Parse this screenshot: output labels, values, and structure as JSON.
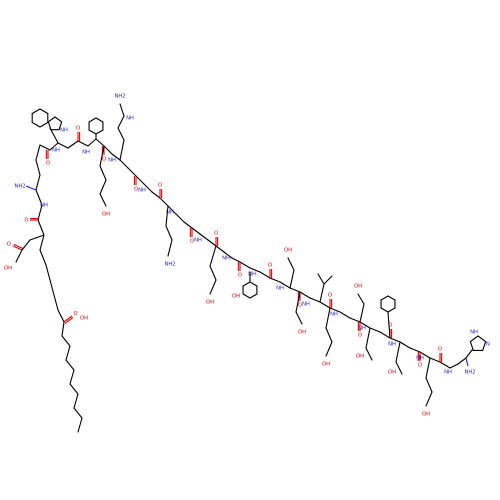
{
  "molecule": {
    "type": "peptide skeletal structure",
    "atom_labels": {
      "oxygen": "O",
      "nitrogen_h": "NH",
      "amine": "NH2",
      "hydroxyl": "OH",
      "imino": "NH",
      "n_ring": "N"
    },
    "colors": {
      "carbon_bond": "#000000",
      "oxygen": "#e00000",
      "nitrogen": "#1f1fd6",
      "background": "#ffffff"
    }
  }
}
